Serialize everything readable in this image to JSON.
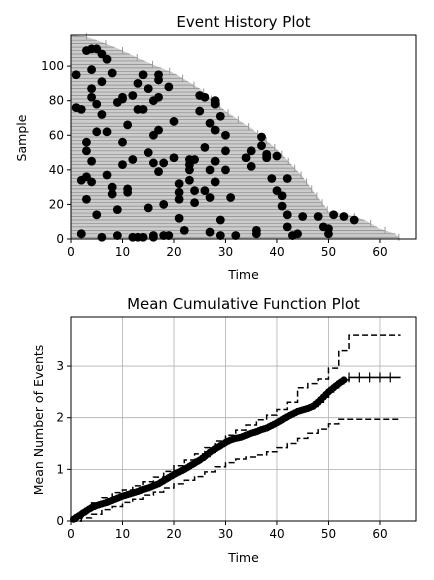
{
  "chart_data": [
    {
      "type": "scatter",
      "title": "Event History Plot",
      "xlabel": "Time",
      "ylabel": "Sample",
      "xlim": [
        0,
        67
      ],
      "ylim": [
        0,
        118
      ],
      "xticks": [
        0,
        10,
        20,
        30,
        40,
        50,
        60
      ],
      "yticks": [
        0,
        20,
        40,
        60,
        80,
        100
      ],
      "grid": false,
      "background_fill": "#cccccc",
      "line_color": "#888888",
      "event_color": "#000000",
      "follow_up_profile": [
        [
          0,
          118
        ],
        [
          3,
          117
        ],
        [
          6,
          114
        ],
        [
          10,
          109
        ],
        [
          15,
          102
        ],
        [
          20,
          96
        ],
        [
          25,
          87
        ],
        [
          30,
          74
        ],
        [
          35,
          64
        ],
        [
          40,
          52
        ],
        [
          45,
          36
        ],
        [
          48,
          24
        ],
        [
          50,
          16
        ],
        [
          54,
          14
        ],
        [
          57,
          11
        ],
        [
          60,
          6
        ],
        [
          63,
          3
        ],
        [
          64,
          0
        ]
      ],
      "events": [
        [
          1,
          95
        ],
        [
          1,
          76
        ],
        [
          2,
          75
        ],
        [
          2,
          34
        ],
        [
          2,
          3
        ],
        [
          2,
          3
        ],
        [
          3,
          23
        ],
        [
          3,
          51
        ],
        [
          3,
          56
        ],
        [
          3,
          36
        ],
        [
          3,
          109
        ],
        [
          4,
          110
        ],
        [
          4,
          98
        ],
        [
          4,
          87
        ],
        [
          4,
          82
        ],
        [
          4,
          45
        ],
        [
          4,
          33
        ],
        [
          5,
          110
        ],
        [
          5,
          62
        ],
        [
          5,
          14
        ],
        [
          5,
          78
        ],
        [
          6,
          107
        ],
        [
          6,
          91
        ],
        [
          6,
          1
        ],
        [
          6,
          72
        ],
        [
          7,
          104
        ],
        [
          7,
          62
        ],
        [
          7,
          37
        ],
        [
          8,
          96
        ],
        [
          8,
          30
        ],
        [
          8,
          26
        ],
        [
          9,
          17
        ],
        [
          9,
          2
        ],
        [
          9,
          79
        ],
        [
          10,
          82
        ],
        [
          10,
          81
        ],
        [
          10,
          56
        ],
        [
          10,
          43
        ],
        [
          11,
          66
        ],
        [
          11,
          29
        ],
        [
          11,
          27
        ],
        [
          12,
          83
        ],
        [
          12,
          46
        ],
        [
          12,
          1
        ],
        [
          13,
          90
        ],
        [
          13,
          75
        ],
        [
          13,
          1
        ],
        [
          14,
          75
        ],
        [
          14,
          1
        ],
        [
          14,
          95
        ],
        [
          15,
          50
        ],
        [
          15,
          18
        ],
        [
          15,
          87
        ],
        [
          16,
          60
        ],
        [
          16,
          80
        ],
        [
          16,
          44
        ],
        [
          16,
          2
        ],
        [
          16,
          1
        ],
        [
          17,
          95
        ],
        [
          17,
          92
        ],
        [
          17,
          82
        ],
        [
          17,
          39
        ],
        [
          17,
          63
        ],
        [
          18,
          20
        ],
        [
          18,
          44
        ],
        [
          18,
          2
        ],
        [
          19,
          88
        ],
        [
          19,
          2
        ],
        [
          20,
          68
        ],
        [
          20,
          47
        ],
        [
          21,
          23
        ],
        [
          21,
          32
        ],
        [
          21,
          27
        ],
        [
          21,
          12
        ],
        [
          22,
          5
        ],
        [
          23,
          46
        ],
        [
          23,
          40
        ],
        [
          23,
          43
        ],
        [
          23,
          34
        ],
        [
          24,
          28
        ],
        [
          24,
          46
        ],
        [
          24,
          21
        ],
        [
          25,
          83
        ],
        [
          25,
          74
        ],
        [
          26,
          82
        ],
        [
          26,
          53
        ],
        [
          26,
          28
        ],
        [
          27,
          40
        ],
        [
          27,
          67
        ],
        [
          27,
          24
        ],
        [
          27,
          4
        ],
        [
          28,
          80
        ],
        [
          28,
          63
        ],
        [
          28,
          33
        ],
        [
          28,
          78
        ],
        [
          28,
          45
        ],
        [
          29,
          71
        ],
        [
          29,
          11
        ],
        [
          29,
          2
        ],
        [
          30,
          60
        ],
        [
          30,
          51
        ],
        [
          30,
          40
        ],
        [
          31,
          24
        ],
        [
          32,
          2
        ],
        [
          34,
          47
        ],
        [
          35,
          51
        ],
        [
          35,
          42
        ],
        [
          36,
          5
        ],
        [
          36,
          3
        ],
        [
          37,
          59
        ],
        [
          37,
          54
        ],
        [
          38,
          48
        ],
        [
          38,
          49
        ],
        [
          38,
          47
        ],
        [
          39,
          35
        ],
        [
          40,
          28
        ],
        [
          40,
          48
        ],
        [
          41,
          19
        ],
        [
          41,
          25
        ],
        [
          42,
          14
        ],
        [
          42,
          7
        ],
        [
          42,
          35
        ],
        [
          43,
          2
        ],
        [
          44,
          3
        ],
        [
          45,
          13
        ],
        [
          48,
          13
        ],
        [
          49,
          7
        ],
        [
          50,
          3
        ],
        [
          50,
          6
        ],
        [
          51,
          14
        ],
        [
          53,
          13
        ],
        [
          55,
          11
        ]
      ]
    },
    {
      "type": "line",
      "title": "Mean Cumulative Function Plot",
      "xlabel": "Time",
      "ylabel": "Mean Number of Events",
      "xlim": [
        0,
        67
      ],
      "ylim": [
        0,
        3.95
      ],
      "xticks": [
        0,
        10,
        20,
        30,
        40,
        50,
        60
      ],
      "yticks": [
        0,
        1,
        2,
        3
      ],
      "grid": true,
      "series": [
        {
          "role": "mcf",
          "style": "solid-markers",
          "x": [
            0,
            1,
            2,
            3,
            4,
            5,
            6,
            7,
            8,
            9,
            10,
            11,
            12,
            13,
            14,
            15,
            16,
            17,
            18,
            19,
            20,
            21,
            22,
            23,
            24,
            25,
            26,
            27,
            28,
            29,
            30,
            31,
            32,
            33,
            34,
            35,
            36,
            37,
            38,
            39,
            40,
            41,
            42,
            43,
            44,
            45,
            46,
            47,
            48,
            49,
            50,
            51,
            52,
            53,
            54,
            55,
            56,
            57,
            58,
            59,
            60,
            61,
            62,
            63,
            64
          ],
          "y": [
            0,
            0.07,
            0.13,
            0.2,
            0.26,
            0.3,
            0.33,
            0.36,
            0.4,
            0.44,
            0.48,
            0.51,
            0.54,
            0.57,
            0.61,
            0.64,
            0.68,
            0.72,
            0.78,
            0.84,
            0.9,
            0.95,
            1.0,
            1.06,
            1.12,
            1.18,
            1.25,
            1.33,
            1.4,
            1.46,
            1.52,
            1.57,
            1.6,
            1.62,
            1.66,
            1.7,
            1.73,
            1.77,
            1.8,
            1.85,
            1.9,
            1.96,
            2.02,
            2.07,
            2.12,
            2.15,
            2.18,
            2.22,
            2.3,
            2.4,
            2.5,
            2.58,
            2.66,
            2.73,
            2.78,
            2.78,
            2.78,
            2.78,
            2.78,
            2.78,
            2.78,
            2.78,
            2.78,
            2.78,
            2.78
          ],
          "censor_x": [
            54,
            56,
            58,
            60,
            62
          ]
        },
        {
          "role": "upper-bound",
          "style": "dashed",
          "x": [
            0,
            2,
            4,
            6,
            8,
            10,
            12,
            14,
            16,
            18,
            20,
            22,
            24,
            26,
            28,
            30,
            32,
            34,
            36,
            38,
            40,
            42,
            44,
            46,
            48,
            50,
            52,
            54,
            56,
            58,
            60,
            62,
            64
          ],
          "y": [
            0,
            0.2,
            0.35,
            0.45,
            0.55,
            0.6,
            0.68,
            0.76,
            0.85,
            0.96,
            1.07,
            1.18,
            1.3,
            1.42,
            1.55,
            1.66,
            1.76,
            1.86,
            1.96,
            2.05,
            2.16,
            2.3,
            2.58,
            2.66,
            2.75,
            2.96,
            3.3,
            3.6,
            3.6,
            3.6,
            3.6,
            3.6,
            3.6
          ]
        },
        {
          "role": "lower-bound",
          "style": "dashed",
          "x": [
            0,
            2,
            4,
            6,
            8,
            10,
            12,
            14,
            16,
            18,
            20,
            22,
            24,
            26,
            28,
            30,
            32,
            34,
            36,
            38,
            40,
            42,
            44,
            46,
            48,
            50,
            52,
            54,
            56,
            58,
            60,
            62,
            64
          ],
          "y": [
            0,
            0.06,
            0.13,
            0.22,
            0.28,
            0.36,
            0.42,
            0.5,
            0.56,
            0.64,
            0.72,
            0.79,
            0.86,
            0.95,
            1.05,
            1.13,
            1.2,
            1.24,
            1.28,
            1.34,
            1.42,
            1.5,
            1.6,
            1.7,
            1.78,
            1.88,
            1.97,
            1.97,
            1.97,
            1.97,
            1.97,
            1.97,
            1.97
          ]
        }
      ]
    }
  ]
}
